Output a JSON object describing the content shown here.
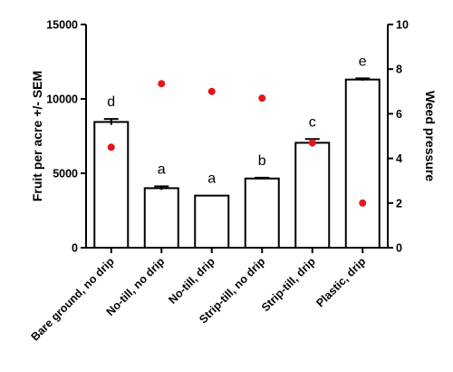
{
  "chart_data": {
    "type": "bar",
    "categories": [
      "Bare ground, no drip",
      "No-till, no drip",
      "No-till, drip",
      "Strip-till, no drip",
      "Strip-till, drip",
      "Plastic, drip"
    ],
    "series": [
      {
        "type": "bar",
        "axis": "left",
        "values": [
          8450,
          4000,
          3500,
          4650,
          7050,
          11300
        ],
        "error": [
          200,
          120,
          0,
          50,
          250,
          80
        ],
        "significance_letters": [
          "d",
          "a",
          "a",
          "b",
          "c",
          "e"
        ],
        "color": "#000000"
      },
      {
        "type": "scatter",
        "axis": "right",
        "values": [
          4.5,
          7.35,
          7.0,
          6.7,
          4.7,
          2.0
        ],
        "color": "#e8141c"
      }
    ],
    "ylabel": "Fruit per acre +/- SEM",
    "ylabel_right": "Weed pressure",
    "ylim": [
      0,
      15000
    ],
    "ylim_right": [
      0,
      10
    ],
    "yticks": [
      "0",
      "5000",
      "10000",
      "15000"
    ],
    "yticks_right": [
      "0",
      "2",
      "4",
      "6",
      "8",
      "10"
    ],
    "grid": false,
    "legend": "none"
  }
}
